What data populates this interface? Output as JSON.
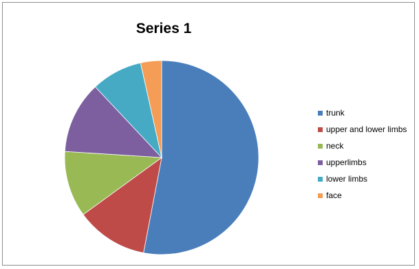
{
  "chart_data": {
    "type": "pie",
    "title": "Series 1",
    "legend_position": "right",
    "slices": [
      {
        "label": "trunk",
        "value": 53,
        "color": "#4a7ebb"
      },
      {
        "label": "upper and lower limbs",
        "value": 12,
        "color": "#be4b48"
      },
      {
        "label": "neck",
        "value": 11,
        "color": "#98b954"
      },
      {
        "label": "upperlimbs",
        "value": 12,
        "color": "#7d5fa0"
      },
      {
        "label": "lower limbs",
        "value": 8.5,
        "color": "#46aac4"
      },
      {
        "label": "face",
        "value": 3.5,
        "color": "#f59d56"
      }
    ]
  }
}
